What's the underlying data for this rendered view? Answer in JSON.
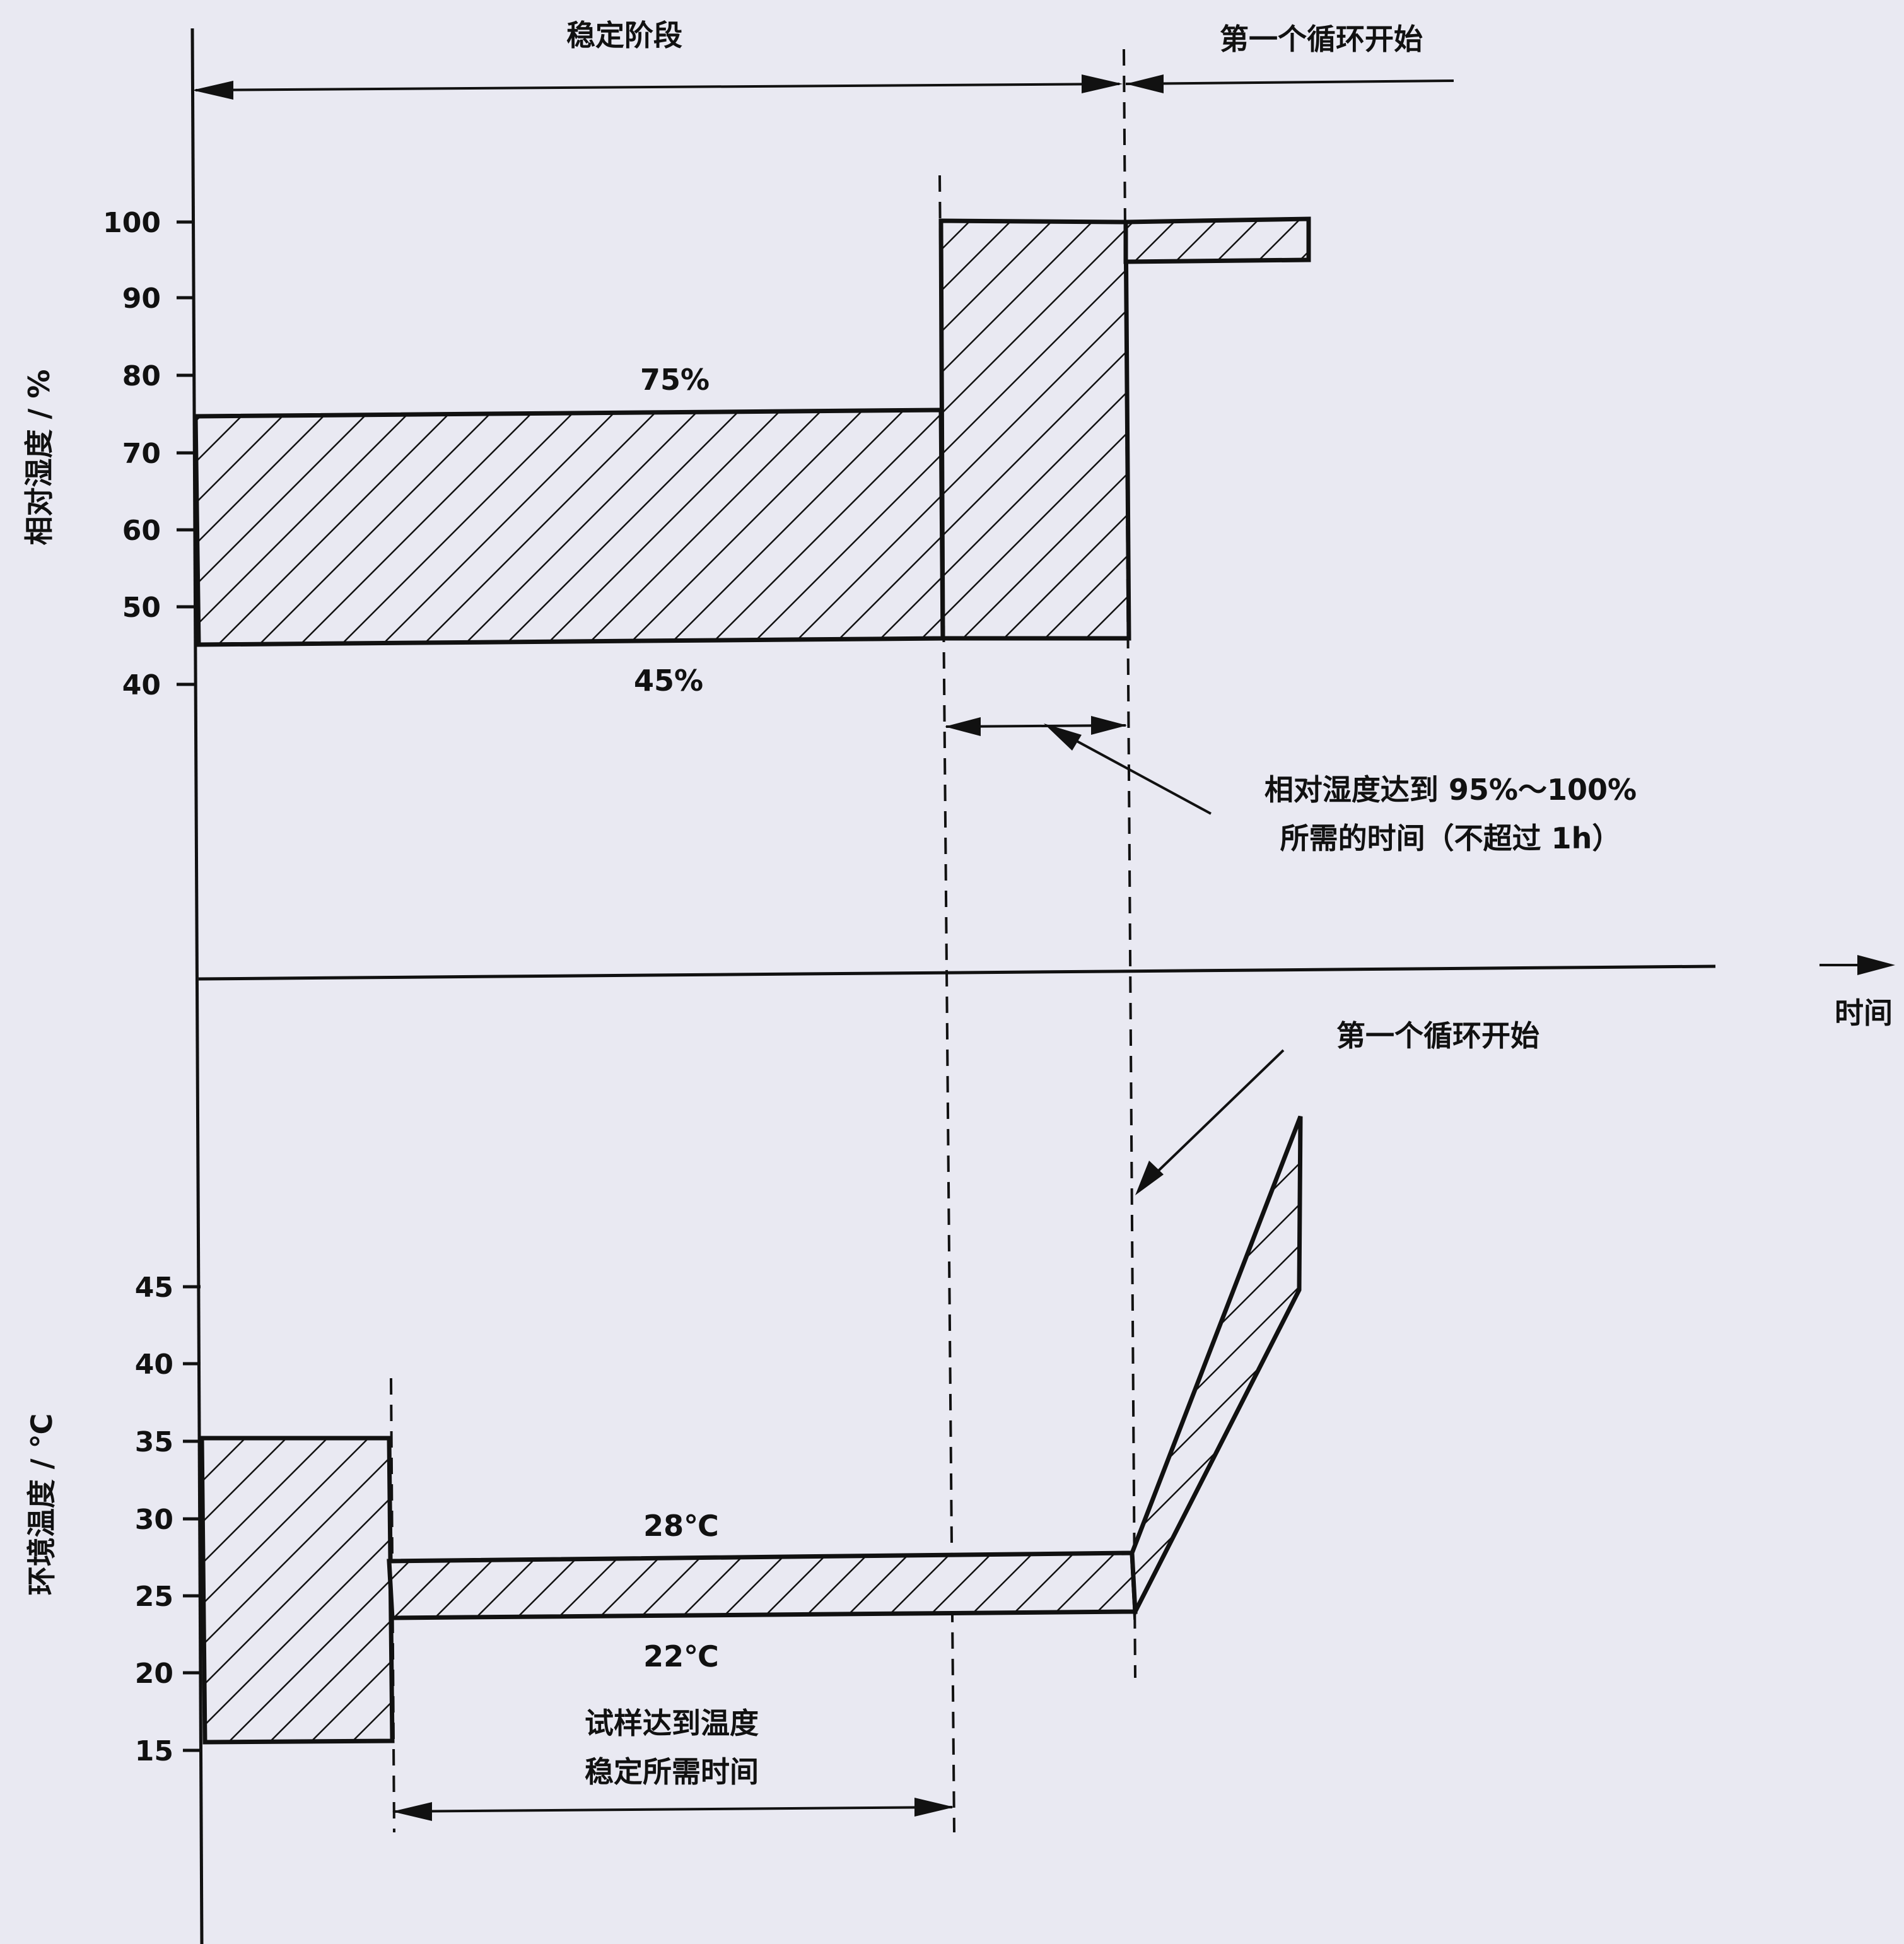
{
  "header": {
    "stabilization_phase": "稳定阶段",
    "first_cycle_start": "第一个循环开始"
  },
  "humidity_chart": {
    "ylabel": "相对湿度 / %",
    "ticks": [
      "100",
      "90",
      "80",
      "70",
      "60",
      "50",
      "40"
    ],
    "upper_band_label": "75%",
    "lower_band_label": "45%",
    "annotation_line1": "相对湿度达到 95%～100%",
    "annotation_line2": "所需的时间（不超过 1h）"
  },
  "time_axis": {
    "label": "时间"
  },
  "temperature_chart": {
    "ylabel": "环境温度 / ℃",
    "ticks": [
      "45",
      "40",
      "35",
      "30",
      "25",
      "20",
      "15"
    ],
    "upper_band_label": "28℃",
    "lower_band_label": "22℃",
    "cycle_start_label": "第一个循环开始",
    "annotation_line1": "试样达到温度",
    "annotation_line2": "稳定所需时间"
  }
}
